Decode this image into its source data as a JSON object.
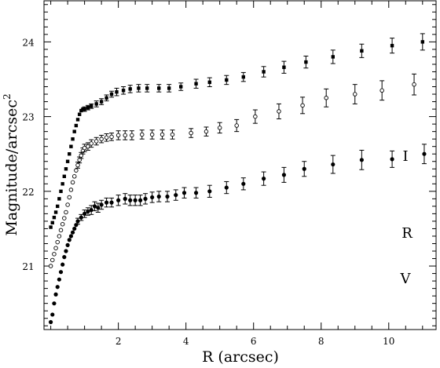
{
  "chart_data": {
    "type": "scatter",
    "xlabel": "R (arcsec)",
    "ylabel": "Magnitude/arcsec",
    "ylabel_sup": "2",
    "xlim": [
      -0.2,
      11.4
    ],
    "ylim": [
      24.55,
      20.15
    ],
    "xticks": [
      2,
      4,
      6,
      8,
      10
    ],
    "yticks": [
      21,
      22,
      23,
      24
    ],
    "grid": false,
    "legend": "none",
    "series": [
      {
        "name": "I",
        "marker": "filled-circle",
        "points": [
          [
            0.0,
            20.25
          ],
          [
            0.05,
            20.35
          ],
          [
            0.1,
            20.5
          ],
          [
            0.15,
            20.62
          ],
          [
            0.2,
            20.72
          ],
          [
            0.25,
            20.82
          ],
          [
            0.3,
            20.92
          ],
          [
            0.35,
            21.02
          ],
          [
            0.4,
            21.12
          ],
          [
            0.45,
            21.2
          ],
          [
            0.5,
            21.28
          ],
          [
            0.55,
            21.35
          ],
          [
            0.6,
            21.4
          ],
          [
            0.65,
            21.45
          ],
          [
            0.7,
            21.5
          ],
          [
            0.75,
            21.55
          ],
          [
            0.8,
            21.6
          ],
          [
            0.9,
            21.65
          ],
          [
            1.0,
            21.7
          ],
          [
            1.1,
            21.73
          ],
          [
            1.2,
            21.75
          ],
          [
            1.3,
            21.8
          ],
          [
            1.4,
            21.78
          ],
          [
            1.5,
            21.82
          ],
          [
            1.65,
            21.85
          ],
          [
            1.8,
            21.85
          ],
          [
            2.0,
            21.88
          ],
          [
            2.2,
            21.9
          ],
          [
            2.35,
            21.88
          ],
          [
            2.5,
            21.88
          ],
          [
            2.65,
            21.88
          ],
          [
            2.8,
            21.9
          ],
          [
            3.0,
            21.92
          ],
          [
            3.2,
            21.93
          ],
          [
            3.45,
            21.93
          ],
          [
            3.7,
            21.95
          ],
          [
            3.95,
            21.98
          ],
          [
            4.3,
            21.98
          ],
          [
            4.7,
            22.0
          ],
          [
            5.2,
            22.05
          ],
          [
            5.7,
            22.1
          ],
          [
            6.3,
            22.17
          ],
          [
            6.9,
            22.22
          ],
          [
            7.5,
            22.3
          ],
          [
            8.35,
            22.36
          ],
          [
            9.2,
            22.42
          ],
          [
            10.1,
            22.43
          ],
          [
            11.05,
            22.5
          ]
        ],
        "errors": [
          0.0,
          0.0,
          0.0,
          0.0,
          0.0,
          0.0,
          0.0,
          0.0,
          0.0,
          0.0,
          0.0,
          0.0,
          0.0,
          0.0,
          0.0,
          0.0,
          0.04,
          0.04,
          0.05,
          0.05,
          0.06,
          0.06,
          0.06,
          0.06,
          0.06,
          0.06,
          0.07,
          0.07,
          0.07,
          0.07,
          0.07,
          0.07,
          0.07,
          0.07,
          0.07,
          0.07,
          0.07,
          0.07,
          0.08,
          0.08,
          0.08,
          0.09,
          0.1,
          0.1,
          0.12,
          0.13,
          0.11,
          0.13
        ]
      },
      {
        "name": "R",
        "marker": "open-circle",
        "points": [
          [
            0.0,
            21.0
          ],
          [
            0.05,
            21.08
          ],
          [
            0.1,
            21.16
          ],
          [
            0.15,
            21.24
          ],
          [
            0.2,
            21.32
          ],
          [
            0.25,
            21.4
          ],
          [
            0.3,
            21.48
          ],
          [
            0.35,
            21.56
          ],
          [
            0.4,
            21.64
          ],
          [
            0.45,
            21.72
          ],
          [
            0.5,
            21.82
          ],
          [
            0.55,
            21.92
          ],
          [
            0.6,
            22.02
          ],
          [
            0.65,
            22.12
          ],
          [
            0.7,
            22.2
          ],
          [
            0.75,
            22.28
          ],
          [
            0.8,
            22.35
          ],
          [
            0.85,
            22.42
          ],
          [
            0.9,
            22.48
          ],
          [
            0.95,
            22.54
          ],
          [
            1.0,
            22.58
          ],
          [
            1.1,
            22.6
          ],
          [
            1.2,
            22.64
          ],
          [
            1.35,
            22.67
          ],
          [
            1.5,
            22.7
          ],
          [
            1.65,
            22.72
          ],
          [
            1.8,
            22.73
          ],
          [
            2.0,
            22.75
          ],
          [
            2.2,
            22.75
          ],
          [
            2.4,
            22.75
          ],
          [
            2.7,
            22.76
          ],
          [
            3.0,
            22.76
          ],
          [
            3.3,
            22.76
          ],
          [
            3.6,
            22.76
          ],
          [
            4.15,
            22.78
          ],
          [
            4.6,
            22.8
          ],
          [
            5.0,
            22.85
          ],
          [
            5.5,
            22.88
          ],
          [
            6.05,
            23.0
          ],
          [
            6.75,
            23.07
          ],
          [
            7.45,
            23.15
          ],
          [
            8.15,
            23.25
          ],
          [
            9.0,
            23.3
          ],
          [
            9.8,
            23.35
          ],
          [
            10.75,
            23.43
          ]
        ],
        "errors": [
          0.0,
          0.0,
          0.0,
          0.0,
          0.0,
          0.0,
          0.0,
          0.0,
          0.0,
          0.0,
          0.0,
          0.0,
          0.0,
          0.0,
          0.0,
          0.0,
          0.04,
          0.04,
          0.04,
          0.04,
          0.05,
          0.05,
          0.05,
          0.05,
          0.05,
          0.05,
          0.05,
          0.06,
          0.06,
          0.06,
          0.06,
          0.06,
          0.06,
          0.06,
          0.06,
          0.06,
          0.07,
          0.08,
          0.09,
          0.1,
          0.11,
          0.12,
          0.13,
          0.13,
          0.14
        ]
      },
      {
        "name": "V",
        "marker": "filled-square",
        "points": [
          [
            0.0,
            21.52
          ],
          [
            0.05,
            21.58
          ],
          [
            0.1,
            21.65
          ],
          [
            0.15,
            21.72
          ],
          [
            0.2,
            21.8
          ],
          [
            0.25,
            21.9
          ],
          [
            0.3,
            22.0
          ],
          [
            0.35,
            22.1
          ],
          [
            0.4,
            22.2
          ],
          [
            0.45,
            22.3
          ],
          [
            0.5,
            22.4
          ],
          [
            0.55,
            22.5
          ],
          [
            0.6,
            22.6
          ],
          [
            0.65,
            22.7
          ],
          [
            0.7,
            22.8
          ],
          [
            0.75,
            22.88
          ],
          [
            0.8,
            22.96
          ],
          [
            0.85,
            23.03
          ],
          [
            0.9,
            23.08
          ],
          [
            0.95,
            23.1
          ],
          [
            1.0,
            23.1
          ],
          [
            1.1,
            23.12
          ],
          [
            1.2,
            23.14
          ],
          [
            1.35,
            23.17
          ],
          [
            1.5,
            23.2
          ],
          [
            1.65,
            23.25
          ],
          [
            1.8,
            23.3
          ],
          [
            1.95,
            23.33
          ],
          [
            2.15,
            23.35
          ],
          [
            2.35,
            23.37
          ],
          [
            2.6,
            23.38
          ],
          [
            2.85,
            23.38
          ],
          [
            3.2,
            23.38
          ],
          [
            3.5,
            23.38
          ],
          [
            3.85,
            23.4
          ],
          [
            4.3,
            23.44
          ],
          [
            4.7,
            23.46
          ],
          [
            5.2,
            23.49
          ],
          [
            5.7,
            23.53
          ],
          [
            6.3,
            23.6
          ],
          [
            6.9,
            23.66
          ],
          [
            7.55,
            23.73
          ],
          [
            8.35,
            23.8
          ],
          [
            9.2,
            23.88
          ],
          [
            10.1,
            23.95
          ],
          [
            11.0,
            24.0
          ]
        ],
        "errors": [
          0.0,
          0.0,
          0.0,
          0.0,
          0.0,
          0.0,
          0.0,
          0.0,
          0.0,
          0.0,
          0.0,
          0.0,
          0.0,
          0.0,
          0.0,
          0.0,
          0.0,
          0.0,
          0.0,
          0.0,
          0.03,
          0.03,
          0.03,
          0.04,
          0.04,
          0.04,
          0.04,
          0.05,
          0.05,
          0.05,
          0.05,
          0.05,
          0.05,
          0.05,
          0.05,
          0.06,
          0.06,
          0.06,
          0.06,
          0.07,
          0.08,
          0.08,
          0.09,
          0.09,
          0.1,
          0.11
        ]
      }
    ],
    "annotations": [
      "I",
      "R",
      "V"
    ]
  }
}
